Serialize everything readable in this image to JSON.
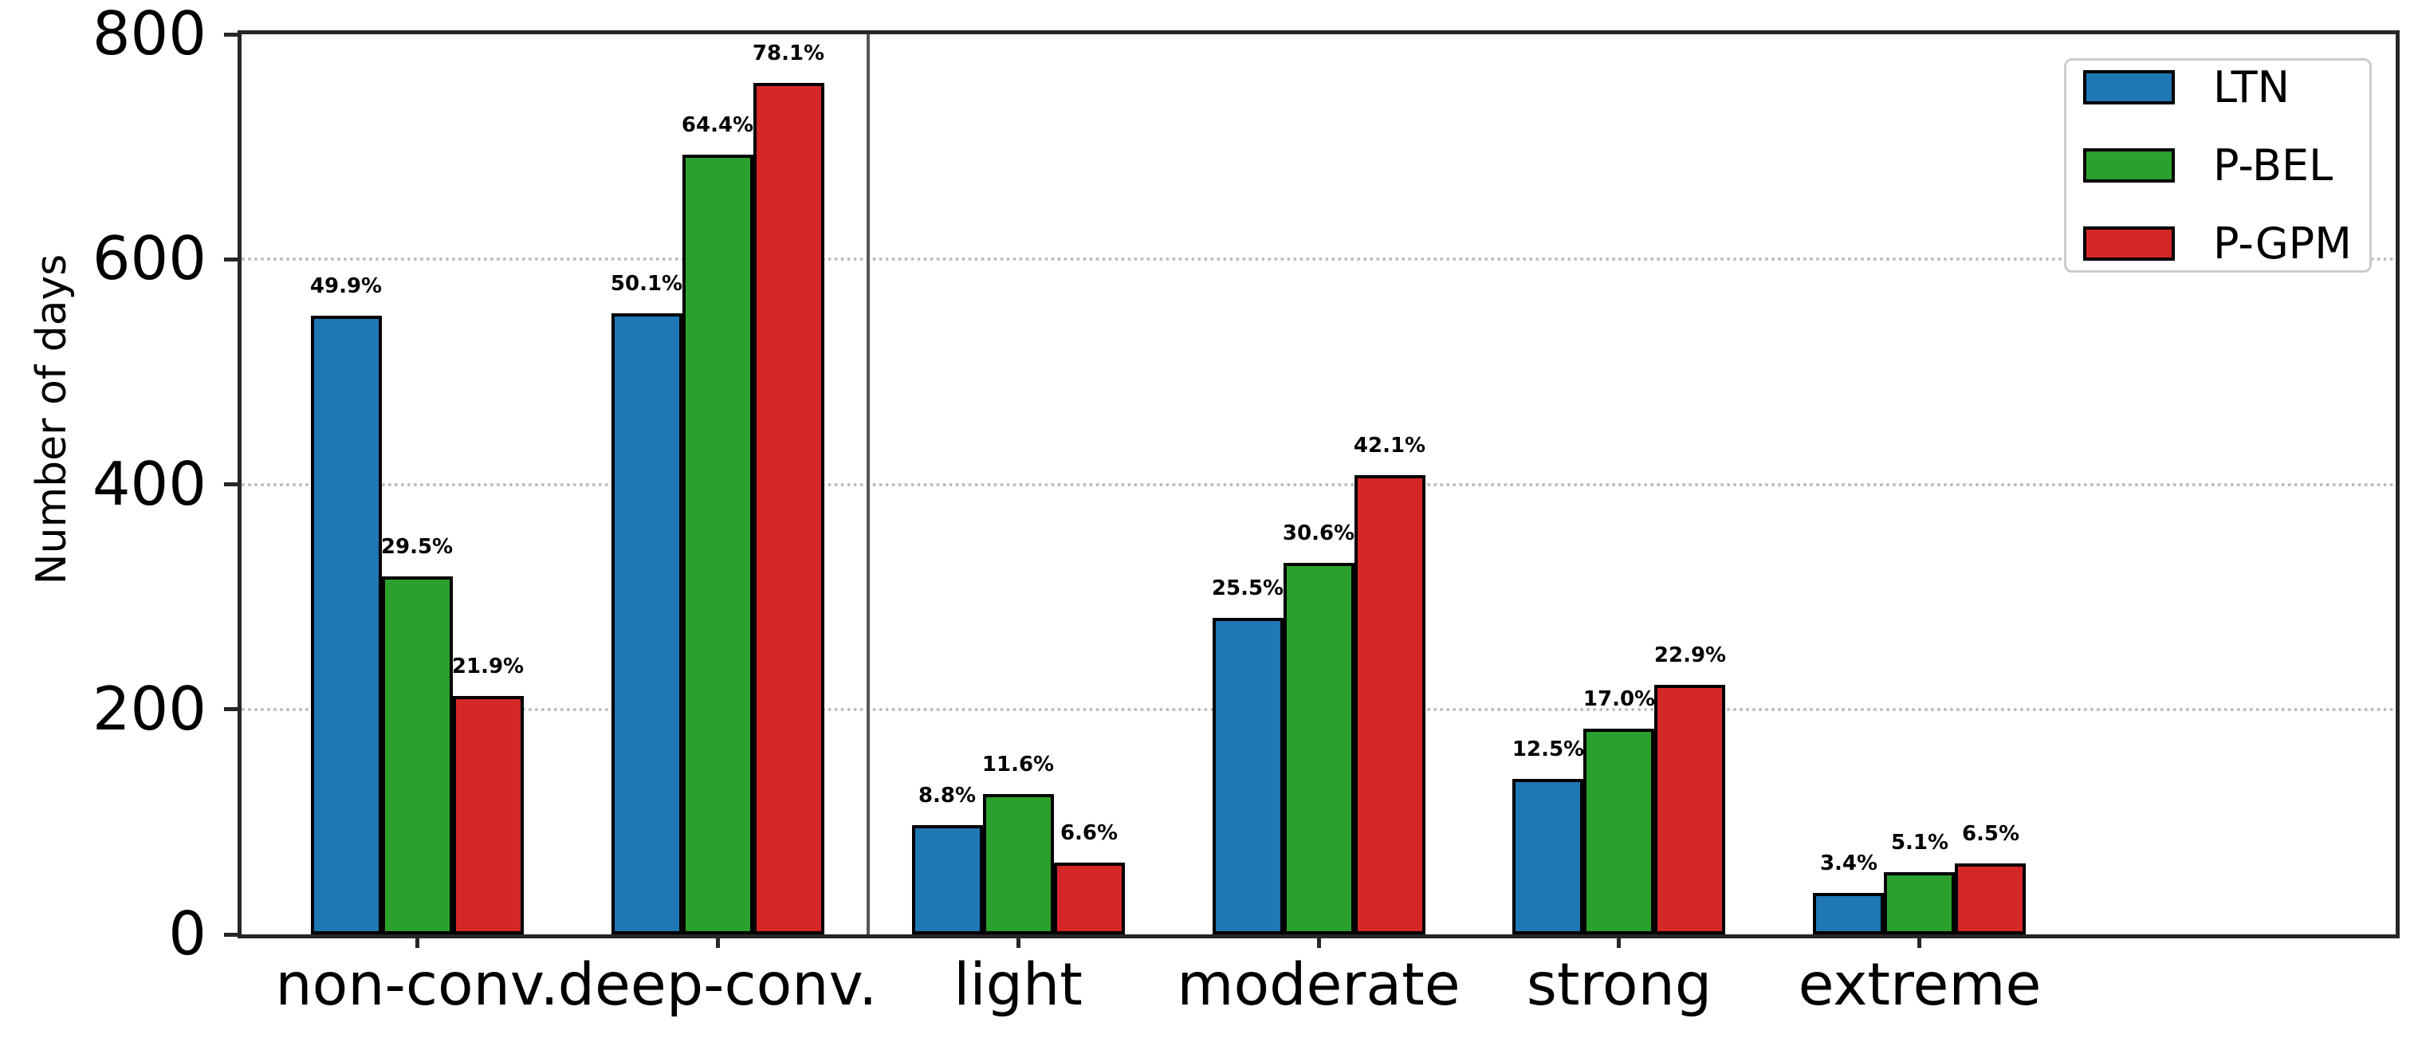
{
  "chart_data": {
    "type": "bar",
    "title": "",
    "ylabel": "Number of days",
    "xlabel": "",
    "categories": [
      "non-conv.",
      "deep-conv.",
      "light",
      "moderate",
      "strong",
      "extreme"
    ],
    "series": [
      {
        "name": "LTN",
        "color": "#1f77b4",
        "values": [
          550,
          552,
          97,
          281,
          138,
          37
        ],
        "labels": [
          "49.9%",
          "50.1%",
          "8.8%",
          "25.5%",
          "12.5%",
          "3.4%"
        ]
      },
      {
        "name": "P-BEL",
        "color": "#2ca02c",
        "values": [
          318,
          693,
          125,
          330,
          183,
          55
        ],
        "labels": [
          "29.5%",
          "64.4%",
          "11.6%",
          "30.6%",
          "17.0%",
          "5.1%"
        ]
      },
      {
        "name": "P-GPM",
        "color": "#d62728",
        "values": [
          212,
          757,
          64,
          408,
          222,
          63
        ],
        "labels": [
          "21.9%",
          "78.1%",
          "6.6%",
          "42.1%",
          "22.9%",
          "6.5%"
        ]
      }
    ],
    "ylim": [
      0,
      800
    ],
    "yticks": [
      0,
      200,
      400,
      600,
      800
    ],
    "ytick_labels": [
      "0",
      "200",
      "400",
      "600",
      "800"
    ],
    "grid": "horizontal dotted",
    "grid_color": "#bdbdbd",
    "separator_between": [
      "deep-conv.",
      "light"
    ],
    "separator_color": "#565656",
    "bar_edge_color": "#000000",
    "legend_position": "upper right",
    "legend_entries": [
      "LTN",
      "P-BEL",
      "P-GPM"
    ]
  }
}
